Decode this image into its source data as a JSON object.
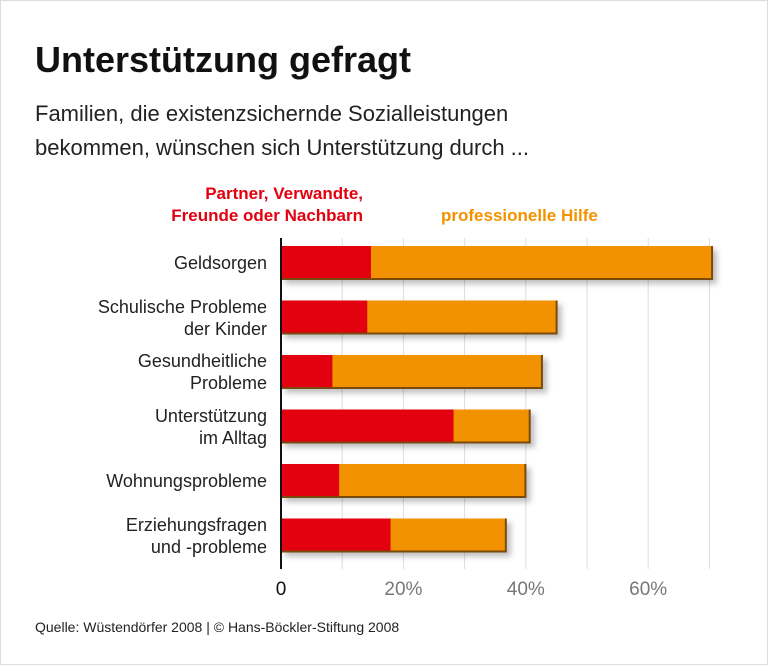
{
  "title": "Unterstützung gefragt",
  "subtitle_lines": [
    "Familien, die existenzsichernde Sozialleistungen",
    "bekommen, wünschen sich Unterstützung durch ..."
  ],
  "source": "Quelle: Wüstendörfer 2008 | © Hans-Böckler-Stiftung 2008",
  "chart_data": {
    "type": "bar",
    "orientation": "horizontal",
    "stacked": true,
    "categories": [
      [
        "Geldsorgen"
      ],
      [
        "Schulische Probleme",
        "der Kinder"
      ],
      [
        "Gesundheitliche",
        "Probleme"
      ],
      [
        "Unterstützung",
        "im Alltag"
      ],
      [
        "Wohnungsprobleme"
      ],
      [
        "Erziehungsfragen",
        "und -probleme"
      ]
    ],
    "series": [
      {
        "name": "Partner, Verwandte, Freunde oder Nachbarn",
        "name_lines": [
          "Partner, Verwandte,",
          "Freunde oder Nachbarn"
        ],
        "color": "#e3000f",
        "values": [
          14.7,
          14.1,
          8.4,
          28.2,
          9.5,
          17.9
        ]
      },
      {
        "name": "professionelle Hilfe",
        "name_lines": [
          "professionelle Hilfe"
        ],
        "color": "#f39200",
        "values": [
          55.9,
          31.1,
          34.4,
          12.6,
          30.6,
          19.0
        ]
      }
    ],
    "xlim": [
      0,
      70
    ],
    "xticks": [
      0,
      20,
      40,
      60
    ],
    "xtick_labels": [
      "0",
      "20%",
      "40%",
      "60%"
    ],
    "grid_step": 10,
    "grid": true,
    "legend_placement": "top"
  }
}
